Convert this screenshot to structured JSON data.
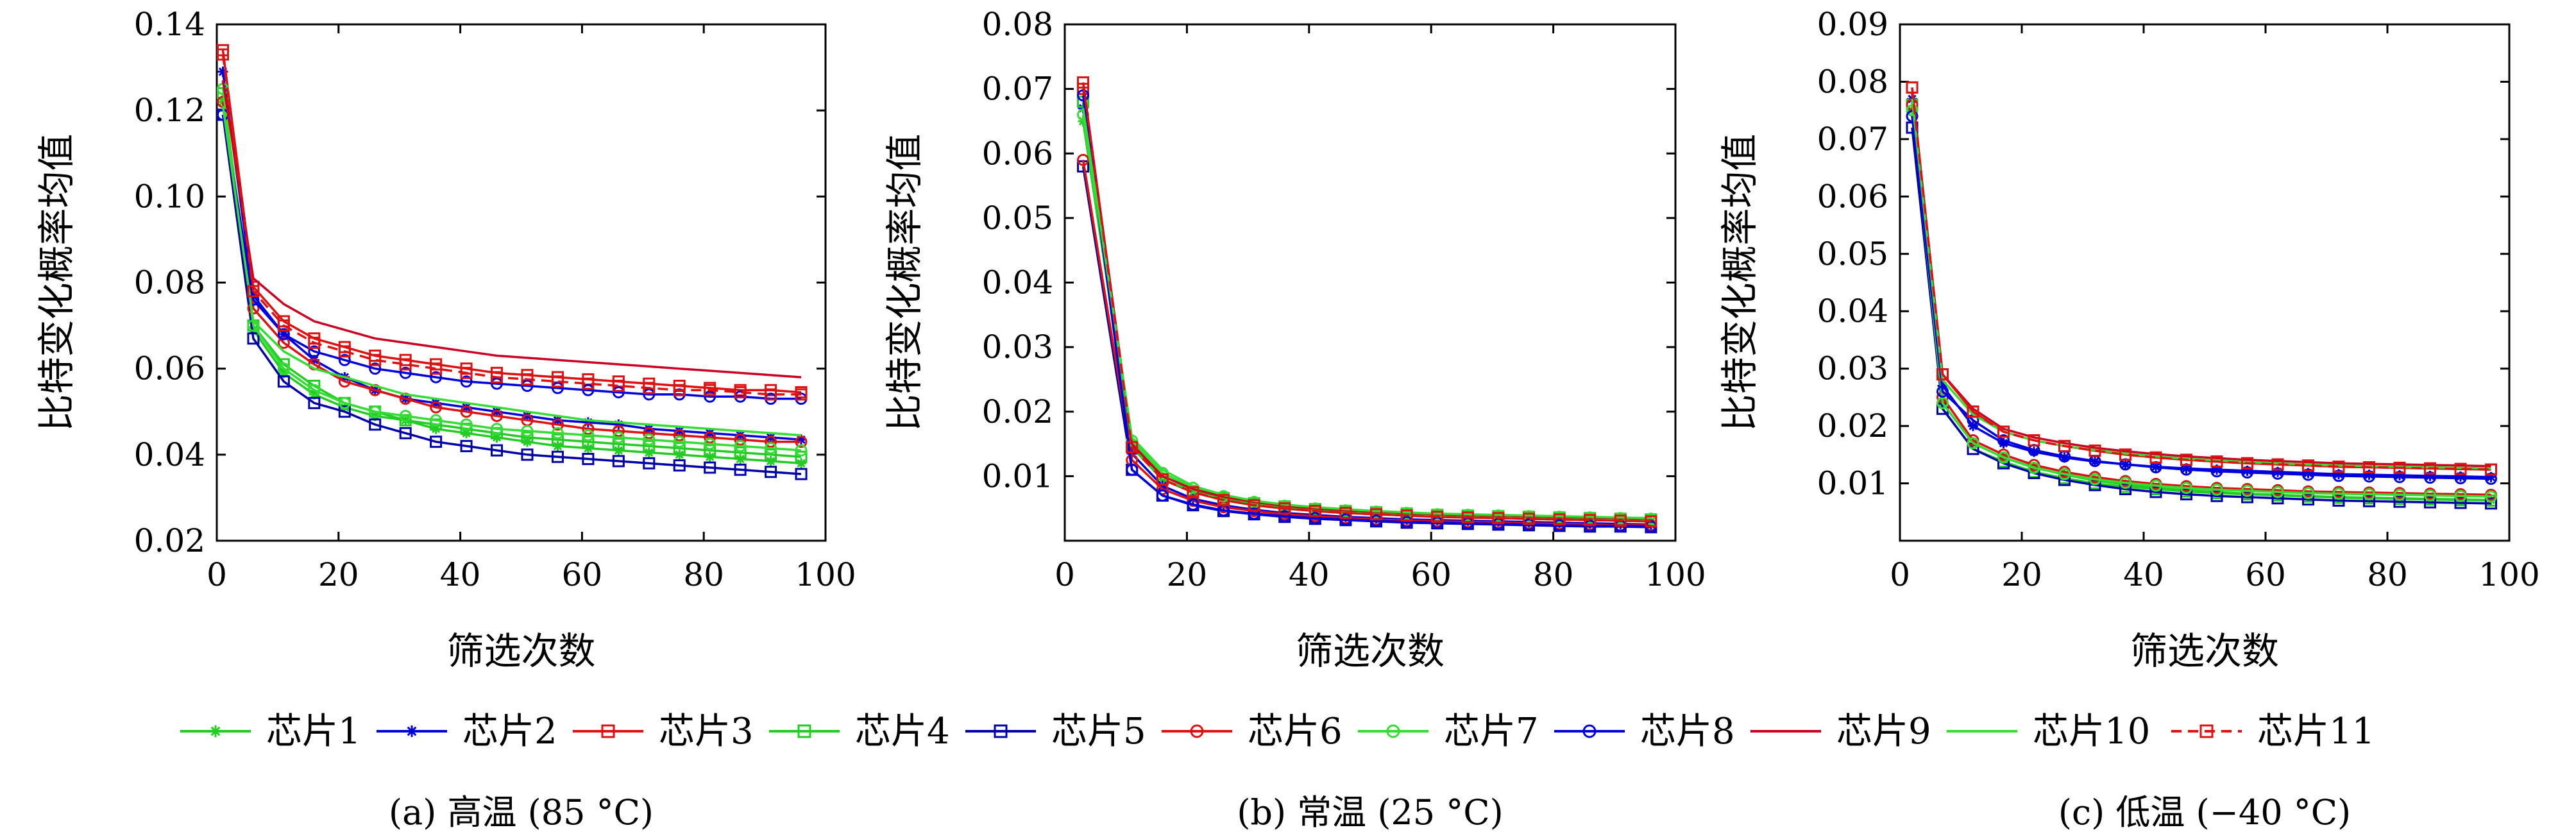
{
  "figure": {
    "legend": [
      {
        "name": "芯片1",
        "color": "#22cc22",
        "marker": "star",
        "dashed": false
      },
      {
        "name": "芯片2",
        "color": "#0000dd",
        "marker": "star",
        "dashed": false
      },
      {
        "name": "芯片3",
        "color": "#dd1111",
        "marker": "square",
        "dashed": false
      },
      {
        "name": "芯片4",
        "color": "#22cc22",
        "marker": "square",
        "dashed": false
      },
      {
        "name": "芯片5",
        "color": "#0000aa",
        "marker": "square",
        "dashed": false
      },
      {
        "name": "芯片6",
        "color": "#dd1111",
        "marker": "circle",
        "dashed": false
      },
      {
        "name": "芯片7",
        "color": "#33dd33",
        "marker": "circle",
        "dashed": false
      },
      {
        "name": "芯片8",
        "color": "#0000dd",
        "marker": "circle",
        "dashed": false
      },
      {
        "name": "芯片9",
        "color": "#cc0022",
        "marker": "none",
        "dashed": false
      },
      {
        "name": "芯片10",
        "color": "#33dd33",
        "marker": "none",
        "dashed": false
      },
      {
        "name": "芯片11",
        "color": "#dd1111",
        "marker": "square",
        "dashed": true
      }
    ]
  },
  "chart_data": [
    {
      "type": "line",
      "caption": "(a) 高温 (85 °C)",
      "xlabel": "筛选次数",
      "ylabel": "比特变化概率均值",
      "xlim": [
        0,
        100
      ],
      "ylim": [
        0.02,
        0.14
      ],
      "xticks": [
        0,
        20,
        40,
        60,
        80,
        100
      ],
      "yticks": [
        0.02,
        0.04,
        0.06,
        0.08,
        0.1,
        0.12,
        0.14
      ],
      "ytick_labels": [
        "0.02",
        "0.04",
        "0.06",
        "0.08",
        "0.10",
        "0.12",
        "0.14"
      ],
      "x": [
        1,
        6,
        11,
        16,
        21,
        26,
        31,
        36,
        41,
        46,
        51,
        56,
        61,
        66,
        71,
        76,
        81,
        86,
        91,
        96
      ],
      "series": [
        {
          "name": "芯片1",
          "values": [
            0.122,
            0.069,
            0.059,
            0.054,
            0.051,
            0.049,
            0.048,
            0.046,
            0.045,
            0.044,
            0.043,
            0.042,
            0.0415,
            0.041,
            0.0405,
            0.04,
            0.0395,
            0.039,
            0.0385,
            0.038
          ]
        },
        {
          "name": "芯片2",
          "values": [
            0.129,
            0.077,
            0.068,
            0.062,
            0.058,
            0.055,
            0.053,
            0.052,
            0.051,
            0.05,
            0.049,
            0.048,
            0.0475,
            0.047,
            0.046,
            0.0455,
            0.045,
            0.0445,
            0.044,
            0.0435
          ]
        },
        {
          "name": "芯片3",
          "values": [
            0.134,
            0.079,
            0.071,
            0.067,
            0.065,
            0.063,
            0.062,
            0.061,
            0.06,
            0.059,
            0.0585,
            0.058,
            0.0575,
            0.057,
            0.0565,
            0.056,
            0.0555,
            0.055,
            0.055,
            0.0545
          ]
        },
        {
          "name": "芯片4",
          "values": [
            0.124,
            0.07,
            0.061,
            0.056,
            0.052,
            0.05,
            0.048,
            0.047,
            0.046,
            0.045,
            0.044,
            0.0435,
            0.043,
            0.0425,
            0.042,
            0.0415,
            0.041,
            0.0405,
            0.04,
            0.0395
          ]
        },
        {
          "name": "芯片5",
          "values": [
            0.119,
            0.067,
            0.057,
            0.052,
            0.05,
            0.047,
            0.045,
            0.043,
            0.042,
            0.041,
            0.04,
            0.0395,
            0.039,
            0.0385,
            0.038,
            0.0375,
            0.037,
            0.0365,
            0.036,
            0.0355
          ]
        },
        {
          "name": "芯片6",
          "values": [
            0.122,
            0.074,
            0.066,
            0.061,
            0.057,
            0.055,
            0.053,
            0.051,
            0.05,
            0.049,
            0.048,
            0.047,
            0.046,
            0.0455,
            0.045,
            0.0445,
            0.044,
            0.0435,
            0.043,
            0.043
          ]
        },
        {
          "name": "芯片7",
          "values": [
            0.125,
            0.07,
            0.06,
            0.055,
            0.052,
            0.05,
            0.049,
            0.048,
            0.047,
            0.046,
            0.0455,
            0.045,
            0.0445,
            0.044,
            0.0435,
            0.043,
            0.0425,
            0.042,
            0.0415,
            0.041
          ]
        },
        {
          "name": "芯片8",
          "values": [
            0.119,
            0.076,
            0.068,
            0.064,
            0.062,
            0.06,
            0.059,
            0.058,
            0.057,
            0.0565,
            0.056,
            0.0555,
            0.055,
            0.0545,
            0.054,
            0.054,
            0.0535,
            0.0535,
            0.053,
            0.053
          ]
        },
        {
          "name": "芯片9",
          "values": [
            0.127,
            0.081,
            0.075,
            0.071,
            0.069,
            0.067,
            0.066,
            0.065,
            0.064,
            0.063,
            0.0625,
            0.062,
            0.0615,
            0.061,
            0.0605,
            0.06,
            0.0595,
            0.059,
            0.0585,
            0.058
          ]
        },
        {
          "name": "芯片10",
          "values": [
            0.121,
            0.071,
            0.064,
            0.06,
            0.058,
            0.056,
            0.054,
            0.053,
            0.052,
            0.051,
            0.05,
            0.049,
            0.048,
            0.0475,
            0.047,
            0.0465,
            0.046,
            0.0455,
            0.045,
            0.0445
          ]
        },
        {
          "name": "芯片11",
          "values": [
            0.133,
            0.078,
            0.07,
            0.066,
            0.064,
            0.062,
            0.061,
            0.06,
            0.059,
            0.058,
            0.0575,
            0.057,
            0.0565,
            0.056,
            0.0555,
            0.055,
            0.055,
            0.0545,
            0.054,
            0.054
          ]
        }
      ]
    },
    {
      "type": "line",
      "caption": "(b) 常温 (25 °C)",
      "xlabel": "筛选次数",
      "ylabel": "比特变化概率均值",
      "xlim": [
        0,
        100
      ],
      "ylim": [
        0,
        0.08
      ],
      "xticks": [
        0,
        20,
        40,
        60,
        80,
        100
      ],
      "yticks": [
        0.01,
        0.02,
        0.03,
        0.04,
        0.05,
        0.06,
        0.07,
        0.08
      ],
      "ytick_labels": [
        "0.01",
        "0.02",
        "0.03",
        "0.04",
        "0.05",
        "0.06",
        "0.07",
        "0.08"
      ],
      "x": [
        3,
        11,
        16,
        21,
        26,
        31,
        36,
        41,
        46,
        51,
        56,
        61,
        66,
        71,
        76,
        81,
        86,
        91,
        96
      ],
      "series": [
        {
          "name": "芯片1",
          "values": [
            0.065,
            0.0145,
            0.0095,
            0.0075,
            0.0063,
            0.0055,
            0.005,
            0.0046,
            0.0043,
            0.0041,
            0.0039,
            0.0037,
            0.0036,
            0.0035,
            0.0034,
            0.0033,
            0.0032,
            0.0031,
            0.003
          ]
        },
        {
          "name": "芯片2",
          "values": [
            0.067,
            0.0135,
            0.0085,
            0.0065,
            0.0055,
            0.0048,
            0.0043,
            0.004,
            0.0037,
            0.0035,
            0.0033,
            0.0032,
            0.0031,
            0.003,
            0.0029,
            0.0028,
            0.0027,
            0.0026,
            0.0025
          ]
        },
        {
          "name": "芯片3",
          "values": [
            0.07,
            0.0145,
            0.0095,
            0.0075,
            0.0063,
            0.0055,
            0.005,
            0.0046,
            0.0043,
            0.0041,
            0.0039,
            0.0037,
            0.0036,
            0.0035,
            0.0034,
            0.0033,
            0.0032,
            0.0031,
            0.003
          ]
        },
        {
          "name": "芯片4",
          "values": [
            0.068,
            0.0145,
            0.0095,
            0.0077,
            0.0066,
            0.0058,
            0.0053,
            0.0049,
            0.0046,
            0.0044,
            0.0042,
            0.004,
            0.0039,
            0.0038,
            0.0037,
            0.0036,
            0.0035,
            0.0034,
            0.0033
          ]
        },
        {
          "name": "芯片5",
          "values": [
            0.058,
            0.011,
            0.007,
            0.0055,
            0.0046,
            0.0041,
            0.0037,
            0.0034,
            0.0032,
            0.003,
            0.0028,
            0.0027,
            0.0026,
            0.0025,
            0.0024,
            0.0023,
            0.0022,
            0.0022,
            0.0021
          ]
        },
        {
          "name": "芯片6",
          "values": [
            0.059,
            0.0125,
            0.008,
            0.0062,
            0.0052,
            0.0046,
            0.0041,
            0.0038,
            0.0035,
            0.0033,
            0.0031,
            0.003,
            0.0029,
            0.0028,
            0.0027,
            0.0026,
            0.0025,
            0.0024,
            0.0024
          ]
        },
        {
          "name": "芯片7",
          "values": [
            0.066,
            0.0155,
            0.0105,
            0.0082,
            0.0069,
            0.006,
            0.0054,
            0.005,
            0.0047,
            0.0045,
            0.0043,
            0.0041,
            0.004,
            0.0039,
            0.0038,
            0.0037,
            0.0036,
            0.0035,
            0.0034
          ]
        },
        {
          "name": "芯片8",
          "values": [
            0.069,
            0.011,
            0.007,
            0.0056,
            0.0047,
            0.0042,
            0.0038,
            0.0035,
            0.0033,
            0.0031,
            0.0029,
            0.0028,
            0.0027,
            0.0026,
            0.0025,
            0.0024,
            0.0023,
            0.0023,
            0.0022
          ]
        },
        {
          "name": "芯片9",
          "values": [
            0.071,
            0.015,
            0.01,
            0.008,
            0.0068,
            0.006,
            0.0054,
            0.005,
            0.0047,
            0.0045,
            0.0043,
            0.0041,
            0.004,
            0.0039,
            0.0038,
            0.0037,
            0.0036,
            0.0035,
            0.0034
          ]
        },
        {
          "name": "芯片10",
          "values": [
            0.067,
            0.016,
            0.011,
            0.0085,
            0.0071,
            0.0062,
            0.0056,
            0.0052,
            0.0049,
            0.0046,
            0.0044,
            0.0042,
            0.0041,
            0.004,
            0.0039,
            0.0038,
            0.0037,
            0.0036,
            0.0035
          ]
        },
        {
          "name": "芯片11",
          "values": [
            0.071,
            0.0145,
            0.0095,
            0.0075,
            0.0063,
            0.0055,
            0.005,
            0.0046,
            0.0043,
            0.0041,
            0.0039,
            0.0037,
            0.0036,
            0.0035,
            0.0034,
            0.0033,
            0.0032,
            0.0031,
            0.003
          ]
        }
      ]
    },
    {
      "type": "line",
      "caption": "(c) 低温 (−40 °C)",
      "xlabel": "筛选次数",
      "ylabel": "比特变化概率均值",
      "xlim": [
        0,
        100
      ],
      "ylim": [
        0,
        0.09
      ],
      "xticks": [
        0,
        20,
        40,
        60,
        80,
        100
      ],
      "yticks": [
        0.01,
        0.02,
        0.03,
        0.04,
        0.05,
        0.06,
        0.07,
        0.08,
        0.09
      ],
      "ytick_labels": [
        "0.01",
        "0.02",
        "0.03",
        "0.04",
        "0.05",
        "0.06",
        "0.07",
        "0.08",
        "0.09"
      ],
      "x": [
        2,
        7,
        12,
        17,
        22,
        27,
        32,
        37,
        42,
        47,
        52,
        57,
        62,
        67,
        72,
        77,
        82,
        87,
        92,
        97
      ],
      "series": [
        {
          "name": "芯片1",
          "values": [
            0.075,
            0.024,
            0.017,
            0.0145,
            0.0128,
            0.0115,
            0.0105,
            0.0098,
            0.0092,
            0.0088,
            0.0085,
            0.0082,
            0.008,
            0.0078,
            0.0076,
            0.0075,
            0.0074,
            0.0073,
            0.0072,
            0.0071
          ]
        },
        {
          "name": "芯片2",
          "values": [
            0.077,
            0.027,
            0.02,
            0.017,
            0.0155,
            0.0145,
            0.0138,
            0.0133,
            0.0129,
            0.0126,
            0.0124,
            0.0122,
            0.012,
            0.0118,
            0.0116,
            0.0115,
            0.0114,
            0.0113,
            0.0112,
            0.0111
          ]
        },
        {
          "name": "芯片3",
          "values": [
            0.079,
            0.029,
            0.0225,
            0.019,
            0.0175,
            0.0165,
            0.0157,
            0.015,
            0.0145,
            0.0141,
            0.0138,
            0.0135,
            0.0133,
            0.0131,
            0.0129,
            0.0128,
            0.0127,
            0.0126,
            0.0125,
            0.0124
          ]
        },
        {
          "name": "芯片4",
          "values": [
            0.076,
            0.023,
            0.016,
            0.0138,
            0.012,
            0.0109,
            0.01,
            0.0094,
            0.009,
            0.0086,
            0.0083,
            0.0081,
            0.0079,
            0.0077,
            0.0075,
            0.0074,
            0.0073,
            0.0072,
            0.0071,
            0.007
          ]
        },
        {
          "name": "芯片5",
          "values": [
            0.072,
            0.023,
            0.016,
            0.0135,
            0.0118,
            0.0106,
            0.0097,
            0.009,
            0.0085,
            0.0081,
            0.0078,
            0.0076,
            0.0074,
            0.0072,
            0.007,
            0.0069,
            0.0068,
            0.0067,
            0.0066,
            0.0065
          ]
        },
        {
          "name": "芯片6",
          "values": [
            0.076,
            0.025,
            0.0175,
            0.015,
            0.0132,
            0.012,
            0.0111,
            0.0104,
            0.0099,
            0.0095,
            0.0092,
            0.009,
            0.0088,
            0.0086,
            0.0085,
            0.0084,
            0.0083,
            0.0082,
            0.0081,
            0.008
          ]
        },
        {
          "name": "芯片7",
          "values": [
            0.075,
            0.024,
            0.017,
            0.0145,
            0.0127,
            0.0116,
            0.0107,
            0.0101,
            0.0096,
            0.0092,
            0.0089,
            0.0087,
            0.0085,
            0.0083,
            0.0082,
            0.0081,
            0.008,
            0.0079,
            0.0078,
            0.0077
          ]
        },
        {
          "name": "芯片8",
          "values": [
            0.074,
            0.026,
            0.021,
            0.0175,
            0.0158,
            0.0147,
            0.0139,
            0.0133,
            0.0128,
            0.0124,
            0.0121,
            0.0119,
            0.0117,
            0.0115,
            0.0113,
            0.0112,
            0.0111,
            0.011,
            0.0109,
            0.0108
          ]
        },
        {
          "name": "芯片9",
          "values": [
            0.078,
            0.029,
            0.023,
            0.0195,
            0.018,
            0.017,
            0.0162,
            0.0156,
            0.0151,
            0.0147,
            0.0144,
            0.0141,
            0.0139,
            0.0137,
            0.0135,
            0.0134,
            0.0133,
            0.0132,
            0.0131,
            0.013
          ]
        },
        {
          "name": "芯片10",
          "values": [
            0.077,
            0.028,
            0.022,
            0.019,
            0.0175,
            0.0165,
            0.0158,
            0.0152,
            0.0147,
            0.0143,
            0.014,
            0.0137,
            0.0135,
            0.0133,
            0.0131,
            0.013,
            0.0129,
            0.0128,
            0.0127,
            0.0126
          ]
        },
        {
          "name": "芯片11",
          "values": [
            0.079,
            0.029,
            0.0225,
            0.019,
            0.0175,
            0.0165,
            0.0157,
            0.015,
            0.0145,
            0.0141,
            0.0138,
            0.0135,
            0.0133,
            0.0131,
            0.0129,
            0.0128,
            0.0127,
            0.0126,
            0.0125,
            0.0124
          ]
        }
      ]
    }
  ]
}
